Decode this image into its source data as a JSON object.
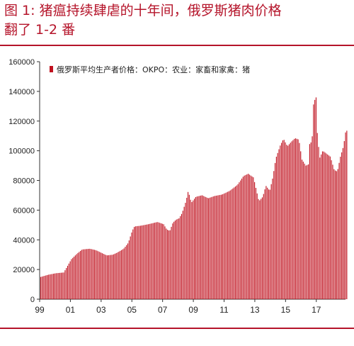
{
  "title": {
    "line1": "图 1: 猪瘟持续肆虐的十年间，俄罗斯猪肉价格",
    "line2": "翻了 1-2 番"
  },
  "chart_data": {
    "type": "bar",
    "title": "",
    "xlabel": "",
    "ylabel": "",
    "ylim": [
      0,
      160000
    ],
    "yticks": [
      0,
      20000,
      40000,
      60000,
      80000,
      100000,
      120000,
      140000,
      160000
    ],
    "xticks": [
      "99",
      "01",
      "03",
      "05",
      "07",
      "09",
      "11",
      "13",
      "15",
      "17"
    ],
    "x_range": [
      1999.0,
      2018.9
    ],
    "legend": {
      "placement": "top-left",
      "entries": [
        "俄罗斯平均生产者价格：OKPO：农业：家畜和家禽：猪"
      ]
    },
    "series": [
      {
        "name": "俄罗斯平均生产者价格：OKPO：农业：家畜和家禽：猪",
        "color": "#c0121f",
        "anchors": [
          [
            1999.0,
            15000
          ],
          [
            1999.5,
            16500
          ],
          [
            2000.0,
            17500
          ],
          [
            2000.5,
            18000
          ],
          [
            2001.0,
            27000
          ],
          [
            2001.4,
            31000
          ],
          [
            2001.7,
            33500
          ],
          [
            2002.2,
            34000
          ],
          [
            2002.6,
            33000
          ],
          [
            2003.0,
            31000
          ],
          [
            2003.3,
            29500
          ],
          [
            2003.7,
            30000
          ],
          [
            2004.0,
            31500
          ],
          [
            2004.4,
            34000
          ],
          [
            2004.7,
            38000
          ],
          [
            2004.95,
            46000
          ],
          [
            2005.1,
            49000
          ],
          [
            2005.5,
            49500
          ],
          [
            2006.0,
            50500
          ],
          [
            2006.6,
            52000
          ],
          [
            2007.0,
            50500
          ],
          [
            2007.2,
            47000
          ],
          [
            2007.4,
            46000
          ],
          [
            2007.6,
            51500
          ],
          [
            2007.8,
            53500
          ],
          [
            2008.0,
            54500
          ],
          [
            2008.2,
            58000
          ],
          [
            2008.45,
            66000
          ],
          [
            2008.6,
            73000
          ],
          [
            2008.8,
            65000
          ],
          [
            2009.1,
            69000
          ],
          [
            2009.5,
            70000
          ],
          [
            2009.9,
            68000
          ],
          [
            2010.3,
            69500
          ],
          [
            2010.8,
            70500
          ],
          [
            2011.3,
            73000
          ],
          [
            2011.8,
            77000
          ],
          [
            2012.2,
            83000
          ],
          [
            2012.5,
            84500
          ],
          [
            2012.85,
            82000
          ],
          [
            2013.0,
            75000
          ],
          [
            2013.2,
            66000
          ],
          [
            2013.45,
            69000
          ],
          [
            2013.65,
            76500
          ],
          [
            2013.9,
            73000
          ],
          [
            2014.1,
            82000
          ],
          [
            2014.3,
            95000
          ],
          [
            2014.6,
            104000
          ],
          [
            2014.8,
            108000
          ],
          [
            2015.05,
            103000
          ],
          [
            2015.3,
            106000
          ],
          [
            2015.55,
            108500
          ],
          [
            2015.8,
            107500
          ],
          [
            2016.0,
            94000
          ],
          [
            2016.25,
            90000
          ],
          [
            2016.45,
            91000
          ],
          [
            2016.55,
            118000
          ],
          [
            2016.62,
            92000
          ],
          [
            2016.72,
            130000
          ],
          [
            2016.82,
            134000
          ],
          [
            2016.92,
            136000
          ],
          [
            2017.0,
            112000
          ],
          [
            2017.15,
            95000
          ],
          [
            2017.35,
            100000
          ],
          [
            2017.6,
            98000
          ],
          [
            2017.85,
            96000
          ],
          [
            2018.1,
            87000
          ],
          [
            2018.3,
            86000
          ],
          [
            2018.5,
            96000
          ],
          [
            2018.7,
            103000
          ],
          [
            2018.85,
            113500
          ]
        ]
      }
    ]
  }
}
